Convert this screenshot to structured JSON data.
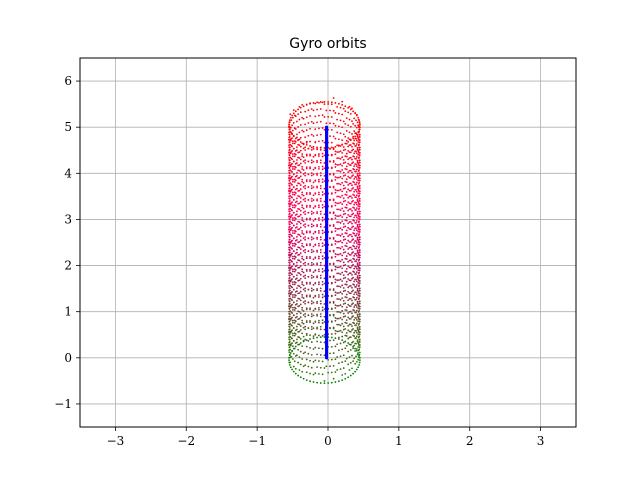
{
  "chart_data": {
    "type": "scatter",
    "title": "Gyro orbits",
    "xlabel": "",
    "ylabel": "",
    "xlim": [
      -3.5,
      3.5
    ],
    "ylim": [
      -1.5,
      6.5
    ],
    "xticks": [
      -3,
      -2,
      -1,
      0,
      1,
      2,
      3
    ],
    "yticks": [
      -1,
      0,
      1,
      2,
      3,
      4,
      5,
      6
    ],
    "xtick_labels": [
      "−3",
      "−2",
      "−1",
      "0",
      "1",
      "2",
      "3"
    ],
    "ytick_labels": [
      "−1",
      "0",
      "1",
      "2",
      "3",
      "4",
      "5",
      "6"
    ],
    "grid": true,
    "legend": "none",
    "series": [
      {
        "color": "#ff0000",
        "marker": "dot",
        "description_points": {
          "center_x": -0.05,
          "radius": 0.5,
          "y_range": [
            0,
            5
          ],
          "ellipse_ry": 0.5
        }
      },
      {
        "color": "#008000",
        "marker": "dot",
        "description_points": {
          "center_x": -0.05,
          "radius": 0.5,
          "y_range": [
            0,
            5
          ],
          "ellipse_ry": 0.5
        }
      },
      {
        "color": "#0000ff",
        "marker": "dot",
        "description_points": {
          "x": -0.02,
          "y_range": [
            0,
            5
          ]
        }
      }
    ]
  }
}
